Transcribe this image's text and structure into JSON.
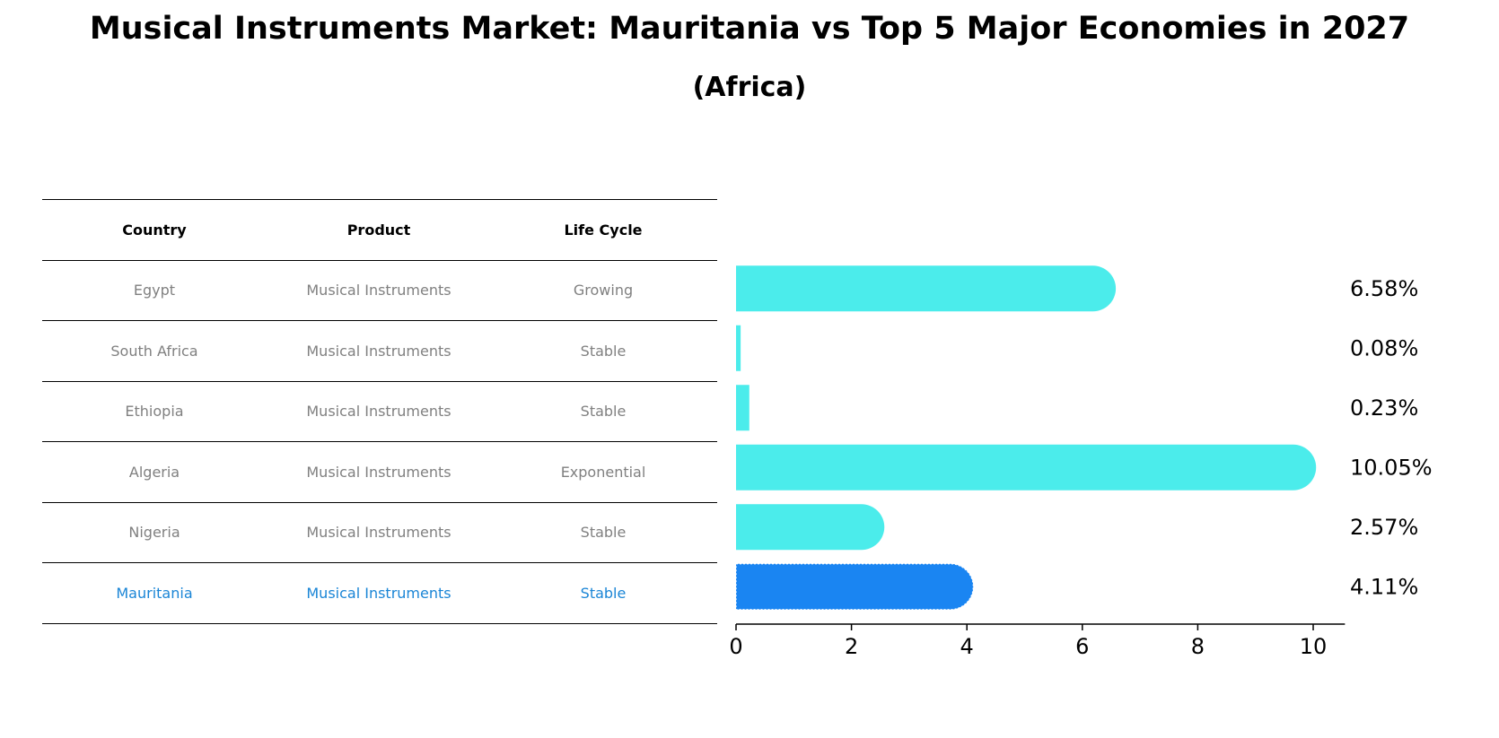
{
  "chart_data": {
    "type": "bar",
    "orientation": "horizontal",
    "title": "Musical Instruments Market: Mauritania vs Top 5 Major Economies in 2027",
    "subtitle": "(Africa)",
    "categories": [
      "Egypt",
      "South Africa",
      "Ethiopia",
      "Algeria",
      "Nigeria",
      "Mauritania"
    ],
    "values": [
      6.58,
      0.08,
      0.23,
      10.05,
      2.57,
      4.11
    ],
    "value_labels": [
      "6.58%",
      "0.08%",
      "0.23%",
      "10.05%",
      "2.57%",
      "4.11%"
    ],
    "highlight": "Mauritania",
    "xlim": [
      0,
      10.55
    ],
    "xticks": [
      0,
      2,
      4,
      6,
      8,
      10
    ],
    "colors": {
      "default": "#4beceb",
      "highlight": "#1a85f2"
    }
  },
  "table": {
    "headers": [
      "Country",
      "Product",
      "Life Cycle"
    ],
    "rows": [
      [
        "Egypt",
        "Musical Instruments",
        "Growing"
      ],
      [
        "South Africa",
        "Musical Instruments",
        "Stable"
      ],
      [
        "Ethiopia",
        "Musical Instruments",
        "Stable"
      ],
      [
        "Algeria",
        "Musical Instruments",
        "Exponential"
      ],
      [
        "Nigeria",
        "Musical Instruments",
        "Stable"
      ],
      [
        "Mauritania",
        "Musical Instruments",
        "Stable"
      ]
    ]
  }
}
